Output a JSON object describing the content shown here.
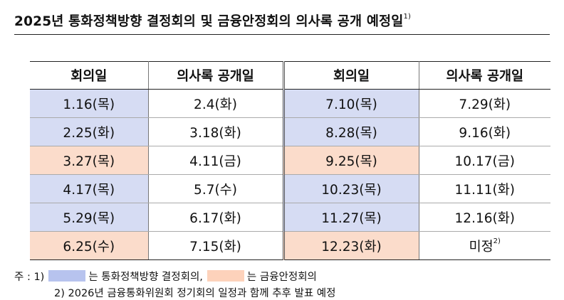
{
  "title": "2025년 통화정책방향 결정회의 및 금융안정회의 의사록 공개 예정일",
  "title_note_marker": "1)",
  "headers": [
    "회의일",
    "의사록 공개일",
    "회의일",
    "의사록 공개일"
  ],
  "rows": [
    {
      "left_meeting": "1.16(목)",
      "left_release": "2.4(화)",
      "left_type": "monetary",
      "right_meeting": "7.10(목)",
      "right_release": "7.29(화)",
      "right_type": "monetary"
    },
    {
      "left_meeting": "2.25(화)",
      "left_release": "3.18(화)",
      "left_type": "monetary",
      "right_meeting": "8.28(목)",
      "right_release": "9.16(화)",
      "right_type": "monetary"
    },
    {
      "left_meeting": "3.27(목)",
      "left_release": "4.11(금)",
      "left_type": "financial",
      "right_meeting": "9.25(목)",
      "right_release": "10.17(금)",
      "right_type": "financial"
    },
    {
      "left_meeting": "4.17(목)",
      "left_release": "5.7(수)",
      "left_type": "monetary",
      "right_meeting": "10.23(목)",
      "right_release": "11.11(화)",
      "right_type": "monetary"
    },
    {
      "left_meeting": "5.29(목)",
      "left_release": "6.17(화)",
      "left_type": "monetary",
      "right_meeting": "11.27(목)",
      "right_release": "12.16(화)",
      "right_type": "monetary"
    },
    {
      "left_meeting": "6.25(수)",
      "left_release": "7.15(화)",
      "left_type": "financial",
      "right_meeting": "12.23(화)",
      "right_release": "미정",
      "right_type": "financial",
      "right_release_note": "2)"
    }
  ],
  "notes": {
    "prefix": "주 : 1)",
    "blue_label": "는 통화정책방향 결정회의,",
    "peach_label": "는 금융안정회의",
    "note2": "2) 2026년 금융통화위원회 정기회의 일정과 함께 추후 발표 예정"
  },
  "colors": {
    "monetary_cell": "#d6dcf3",
    "financial_cell": "#fbdccb",
    "monetary_swatch": "#b7c3ee",
    "financial_swatch": "#fdd2bb"
  }
}
